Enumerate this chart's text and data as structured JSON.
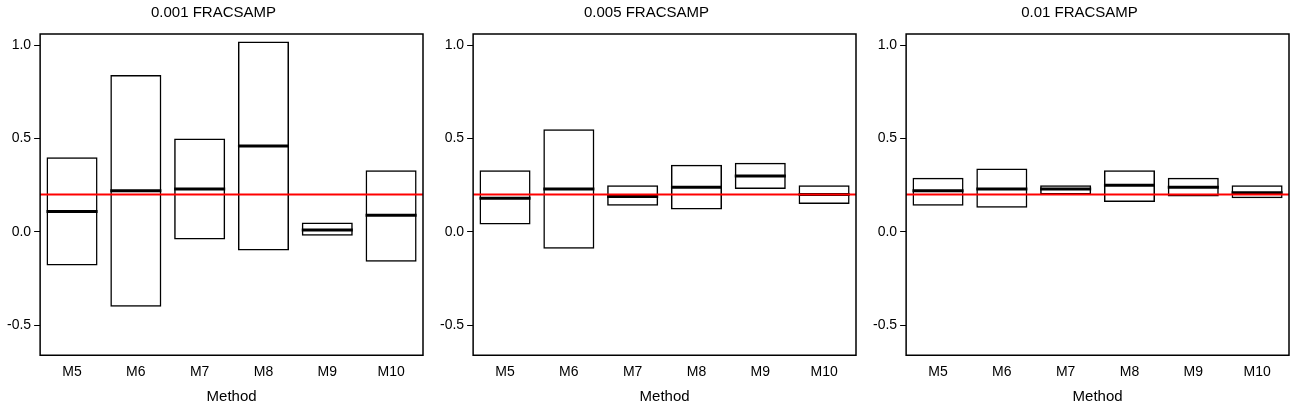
{
  "chart_data": [
    {
      "type": "box",
      "title": "0.001 FRACSAMP",
      "xlabel": "Method",
      "categories": [
        "M5",
        "M6",
        "M7",
        "M8",
        "M9",
        "M10"
      ],
      "boxes": [
        {
          "low": -0.18,
          "q1": -0.18,
          "median": 0.11,
          "q3": 0.4,
          "high": 0.4
        },
        {
          "low": -0.4,
          "q1": -0.4,
          "median": 0.22,
          "q3": 0.84,
          "high": 0.84
        },
        {
          "low": -0.04,
          "q1": -0.04,
          "median": 0.23,
          "q3": 0.5,
          "high": 0.5
        },
        {
          "low": -0.1,
          "q1": -0.1,
          "median": 0.46,
          "q3": 1.02,
          "high": 1.02
        },
        {
          "low": -0.02,
          "q1": -0.02,
          "median": 0.01,
          "q3": 0.05,
          "high": 0.05
        },
        {
          "low": -0.16,
          "q1": -0.16,
          "median": 0.09,
          "q3": 0.33,
          "high": 0.33
        }
      ],
      "ylim": [
        -0.66,
        1.06
      ],
      "yticks": [
        {
          "value": -0.5,
          "label": "-0.5"
        },
        {
          "value": 0,
          "label": "0.0"
        },
        {
          "value": 0.5,
          "label": "0.5"
        },
        {
          "value": 1,
          "label": "1.0"
        }
      ],
      "ref_lines": [
        {
          "axis": "y",
          "value": 0.2,
          "color": "#ff0000"
        }
      ],
      "grid": false,
      "legend": false
    },
    {
      "type": "box",
      "title": "0.005 FRACSAMP",
      "xlabel": "Method",
      "categories": [
        "M5",
        "M6",
        "M7",
        "M8",
        "M9",
        "M10"
      ],
      "boxes": [
        {
          "low": 0.04,
          "q1": 0.04,
          "median": 0.18,
          "q3": 0.33,
          "high": 0.33
        },
        {
          "low": -0.09,
          "q1": -0.09,
          "median": 0.23,
          "q3": 0.55,
          "high": 0.55
        },
        {
          "low": 0.14,
          "q1": 0.14,
          "median": 0.19,
          "q3": 0.25,
          "high": 0.25
        },
        {
          "low": 0.12,
          "q1": 0.12,
          "median": 0.24,
          "q3": 0.36,
          "high": 0.36
        },
        {
          "low": 0.23,
          "q1": 0.23,
          "median": 0.3,
          "q3": 0.37,
          "high": 0.37
        },
        {
          "low": 0.15,
          "q1": 0.15,
          "median": 0.2,
          "q3": 0.25,
          "high": 0.25
        }
      ],
      "ylim": [
        -0.66,
        1.06
      ],
      "yticks": [
        {
          "value": -0.5,
          "label": "-0.5"
        },
        {
          "value": 0,
          "label": "0.0"
        },
        {
          "value": 0.5,
          "label": "0.5"
        },
        {
          "value": 1,
          "label": "1.0"
        }
      ],
      "ref_lines": [
        {
          "axis": "y",
          "value": 0.2,
          "color": "#ff0000"
        }
      ],
      "grid": false,
      "legend": false
    },
    {
      "type": "box",
      "title": "0.01 FRACSAMP",
      "xlabel": "Method",
      "categories": [
        "M5",
        "M6",
        "M7",
        "M8",
        "M9",
        "M10"
      ],
      "boxes": [
        {
          "low": 0.14,
          "q1": 0.14,
          "median": 0.22,
          "q3": 0.29,
          "high": 0.29
        },
        {
          "low": 0.13,
          "q1": 0.13,
          "median": 0.23,
          "q3": 0.34,
          "high": 0.34
        },
        {
          "low": 0.2,
          "q1": 0.2,
          "median": 0.23,
          "q3": 0.25,
          "high": 0.25
        },
        {
          "low": 0.16,
          "q1": 0.16,
          "median": 0.25,
          "q3": 0.33,
          "high": 0.33
        },
        {
          "low": 0.19,
          "q1": 0.19,
          "median": 0.24,
          "q3": 0.29,
          "high": 0.29
        },
        {
          "low": 0.18,
          "q1": 0.18,
          "median": 0.21,
          "q3": 0.25,
          "high": 0.25
        }
      ],
      "ylim": [
        -0.66,
        1.06
      ],
      "yticks": [
        {
          "value": -0.5,
          "label": "-0.5"
        },
        {
          "value": 0,
          "label": "0.0"
        },
        {
          "value": 0.5,
          "label": "0.5"
        },
        {
          "value": 1,
          "label": "1.0"
        }
      ],
      "ref_lines": [
        {
          "axis": "y",
          "value": 0.2,
          "color": "#ff0000"
        }
      ],
      "grid": false,
      "legend": false
    }
  ]
}
